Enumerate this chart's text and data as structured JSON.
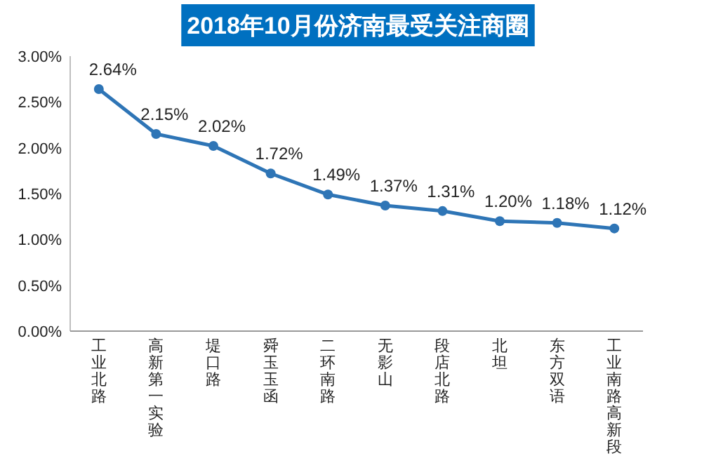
{
  "chart_data": {
    "type": "line",
    "title": "2018年10月份济南最受关注商圈",
    "categories": [
      "工业北路",
      "高新第一实验",
      "堤口路",
      "舜玉玉函",
      "二环南路",
      "无影山",
      "段店北路",
      "北坦",
      "东方双语",
      "工业南路高新段"
    ],
    "series": [
      {
        "color": "#2e75b6",
        "values": [
          2.64,
          2.15,
          2.02,
          1.72,
          1.49,
          1.37,
          1.31,
          1.2,
          1.18,
          1.12
        ],
        "value_labels": [
          "2.64%",
          "2.15%",
          "2.02%",
          "1.72%",
          "1.49%",
          "1.37%",
          "1.31%",
          "1.20%",
          "1.18%",
          "1.12%"
        ]
      }
    ],
    "ylim": [
      0,
      3
    ],
    "yticks": [
      {
        "value": 0,
        "label": "0.00%"
      },
      {
        "value": 0.5,
        "label": "0.50%"
      },
      {
        "value": 1,
        "label": "1.00%"
      },
      {
        "value": 1.5,
        "label": "1.50%"
      },
      {
        "value": 2,
        "label": "2.00%"
      },
      {
        "value": 2.5,
        "label": "2.50%"
      },
      {
        "value": 3,
        "label": "3.00%"
      }
    ],
    "marker": "circle",
    "line_style": "solid"
  }
}
